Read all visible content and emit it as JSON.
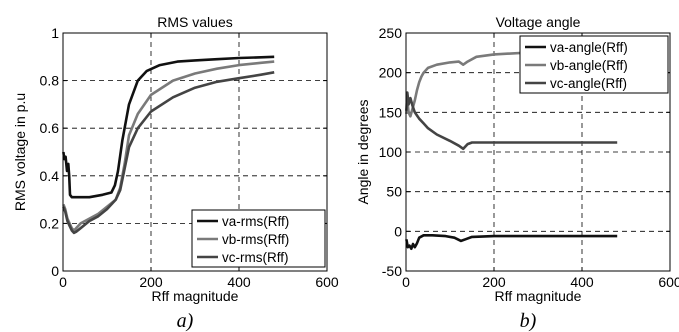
{
  "colors": {
    "series1": "#111111",
    "series2": "#7a7a7a",
    "series3": "#444444"
  },
  "chart_data": [
    {
      "type": "line",
      "title": "RMS values",
      "xlabel": "Rff magnitude",
      "ylabel": "RMS voltage in p.u",
      "xlim": [
        0,
        600
      ],
      "ylim": [
        0,
        1
      ],
      "xticks": [
        "0",
        "200",
        "400",
        "600"
      ],
      "yticks": [
        "0",
        "0.2",
        "0.4",
        "0.6",
        "0.8",
        "1"
      ],
      "grid": true,
      "legend_position": "bottom-right",
      "caption": "a)",
      "series": [
        {
          "name": "va-rms(Rff)",
          "x": [
            1,
            3,
            6,
            9,
            12,
            14,
            16,
            20,
            30,
            60,
            90,
            110,
            118,
            125,
            135,
            150,
            170,
            190,
            220,
            260,
            300,
            350,
            400,
            450,
            480
          ],
          "y": [
            0.5,
            0.47,
            0.48,
            0.42,
            0.45,
            0.4,
            0.32,
            0.31,
            0.31,
            0.31,
            0.32,
            0.33,
            0.36,
            0.42,
            0.55,
            0.7,
            0.8,
            0.84,
            0.865,
            0.88,
            0.885,
            0.89,
            0.895,
            0.898,
            0.9
          ]
        },
        {
          "name": "vb-rms(Rff)",
          "x": [
            1,
            5,
            10,
            15,
            20,
            25,
            30,
            40,
            60,
            80,
            100,
            120,
            130,
            140,
            150,
            170,
            200,
            250,
            300,
            350,
            400,
            450,
            480
          ],
          "y": [
            0.28,
            0.26,
            0.22,
            0.2,
            0.18,
            0.17,
            0.18,
            0.2,
            0.22,
            0.24,
            0.27,
            0.3,
            0.35,
            0.45,
            0.57,
            0.66,
            0.74,
            0.8,
            0.83,
            0.85,
            0.865,
            0.875,
            0.88
          ]
        },
        {
          "name": "vc-rms(Rff)",
          "x": [
            1,
            5,
            10,
            15,
            20,
            25,
            30,
            40,
            60,
            80,
            100,
            120,
            130,
            140,
            150,
            170,
            200,
            250,
            300,
            350,
            400,
            450,
            480
          ],
          "y": [
            0.27,
            0.25,
            0.21,
            0.19,
            0.17,
            0.16,
            0.165,
            0.18,
            0.21,
            0.23,
            0.26,
            0.3,
            0.34,
            0.43,
            0.52,
            0.6,
            0.67,
            0.73,
            0.77,
            0.795,
            0.81,
            0.825,
            0.835
          ]
        }
      ]
    },
    {
      "type": "line",
      "title": "Voltage angle",
      "xlabel": "Rff magnitude",
      "ylabel": "Angle in degrees",
      "xlim": [
        0,
        600
      ],
      "ylim": [
        -50,
        250
      ],
      "xticks": [
        "0",
        "200",
        "400",
        "600"
      ],
      "yticks": [
        "-50",
        "0",
        "50",
        "100",
        "150",
        "200",
        "250"
      ],
      "grid": true,
      "legend_position": "top-right",
      "caption": "b)",
      "series": [
        {
          "name": "va-angle(Rff)",
          "x": [
            1,
            4,
            8,
            12,
            16,
            20,
            25,
            30,
            40,
            60,
            90,
            110,
            125,
            135,
            150,
            200,
            300,
            400,
            480
          ],
          "y": [
            -10,
            -20,
            -18,
            -22,
            -16,
            -20,
            -15,
            -8,
            -5,
            -5,
            -6,
            -8,
            -12,
            -10,
            -7,
            -6,
            -6,
            -6,
            -6
          ]
        },
        {
          "name": "vb-angle(Rff)",
          "x": [
            1,
            3,
            6,
            10,
            15,
            20,
            25,
            30,
            35,
            40,
            50,
            70,
            100,
            120,
            130,
            140,
            160,
            200,
            300,
            400,
            480
          ],
          "y": [
            148,
            165,
            150,
            145,
            155,
            165,
            178,
            188,
            195,
            200,
            206,
            210,
            213,
            214,
            210,
            214,
            220,
            223,
            226,
            228,
            230
          ]
        },
        {
          "name": "vc-angle(Rff)",
          "x": [
            1,
            3,
            6,
            10,
            15,
            20,
            25,
            30,
            40,
            50,
            70,
            100,
            120,
            130,
            140,
            150,
            200,
            300,
            400,
            480
          ],
          "y": [
            152,
            175,
            160,
            168,
            158,
            150,
            146,
            142,
            136,
            130,
            122,
            114,
            108,
            104,
            110,
            112,
            112,
            112,
            112,
            112
          ]
        }
      ]
    }
  ]
}
